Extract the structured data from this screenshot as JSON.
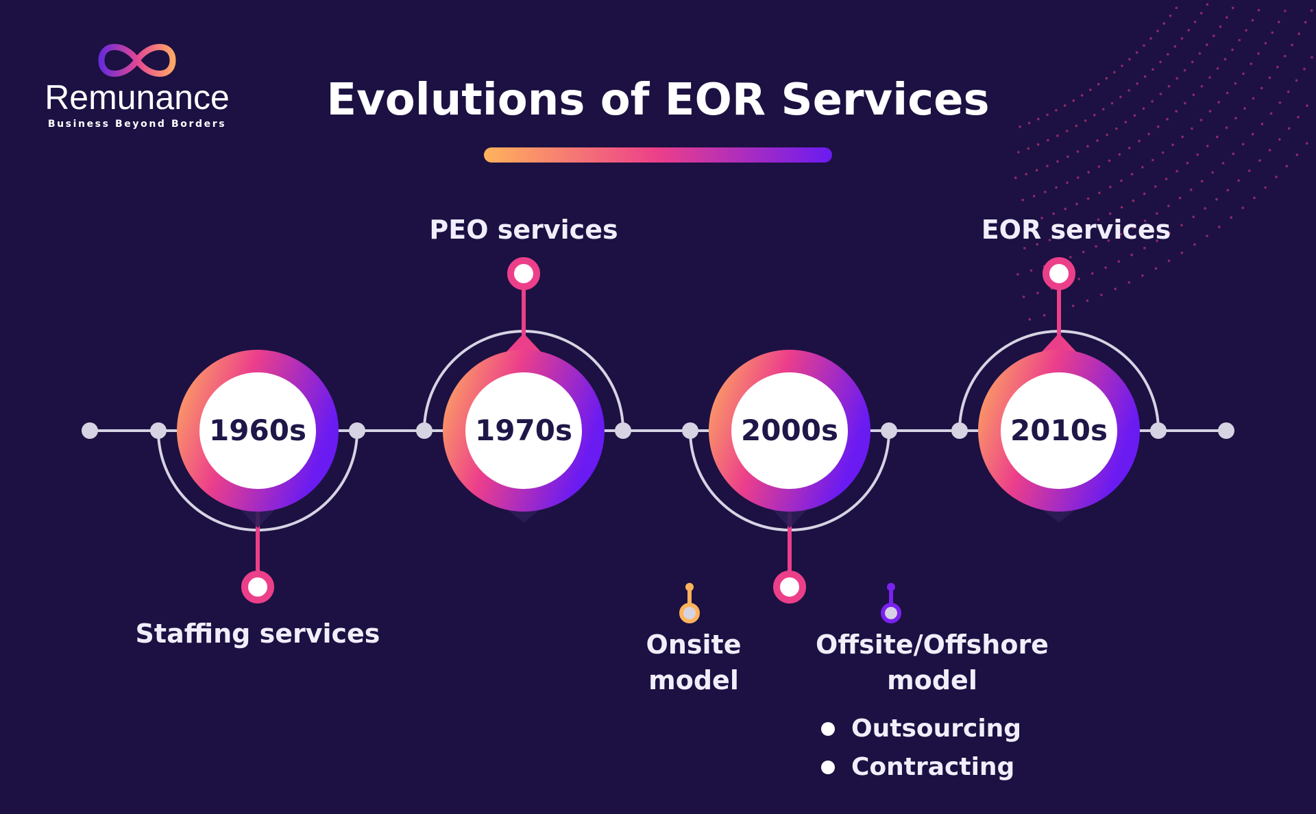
{
  "brand": {
    "name": "Remunance",
    "tagline": "Business Beyond Borders",
    "logo_icon": "infinity-icon"
  },
  "title": "Evolutions of EOR Services",
  "colors": {
    "background": "#1c1142",
    "accent_orange": "#ffb35c",
    "accent_pink": "#ec3f8a",
    "accent_purple": "#6a1bf2",
    "connector": "#d6d3e3"
  },
  "timeline": [
    {
      "year": "1960s",
      "label": "Staffing services",
      "label_position": "below"
    },
    {
      "year": "1970s",
      "label": "PEO services",
      "label_position": "above"
    },
    {
      "year": "2000s",
      "label_position": "below",
      "branches": [
        {
          "label_lines": [
            "Onsite",
            "model"
          ]
        },
        {
          "label_lines": [
            "Offsite/Offshore",
            "model"
          ],
          "items": [
            "Outsourcing",
            "Contracting"
          ]
        }
      ]
    },
    {
      "year": "2010s",
      "label": "EOR services",
      "label_position": "above"
    }
  ]
}
